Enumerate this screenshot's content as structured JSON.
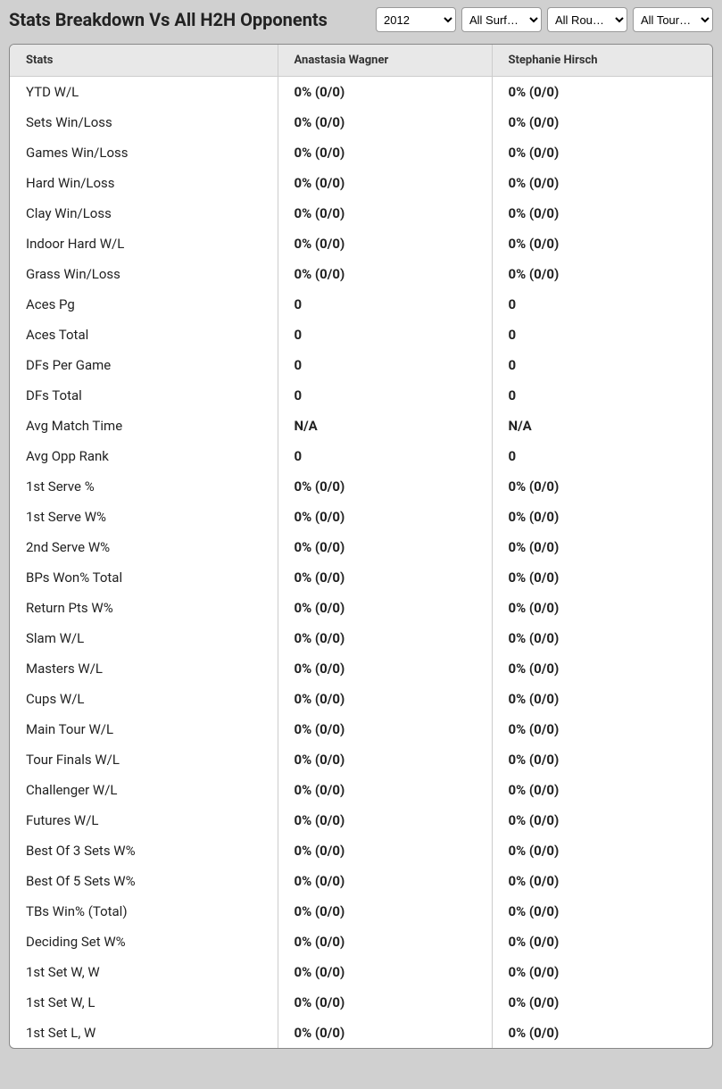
{
  "header": {
    "title": "Stats Breakdown Vs All H2H Opponents",
    "year_selected": "2012",
    "surface_selected": "All Surf…",
    "round_selected": "All Rou…",
    "tour_selected": "All Tour…"
  },
  "table": {
    "columns": [
      "Stats",
      "Anastasia Wagner",
      "Stephanie Hirsch"
    ],
    "rows": [
      {
        "label": "YTD W/L",
        "p1": "0% (0/0)",
        "p2": "0% (0/0)"
      },
      {
        "label": "Sets Win/Loss",
        "p1": "0% (0/0)",
        "p2": "0% (0/0)"
      },
      {
        "label": "Games Win/Loss",
        "p1": "0% (0/0)",
        "p2": "0% (0/0)"
      },
      {
        "label": "Hard Win/Loss",
        "p1": "0% (0/0)",
        "p2": "0% (0/0)"
      },
      {
        "label": "Clay Win/Loss",
        "p1": "0% (0/0)",
        "p2": "0% (0/0)"
      },
      {
        "label": "Indoor Hard W/L",
        "p1": "0% (0/0)",
        "p2": "0% (0/0)"
      },
      {
        "label": "Grass Win/Loss",
        "p1": "0% (0/0)",
        "p2": "0% (0/0)"
      },
      {
        "label": "Aces Pg",
        "p1": "0",
        "p2": "0"
      },
      {
        "label": "Aces Total",
        "p1": "0",
        "p2": "0"
      },
      {
        "label": "DFs Per Game",
        "p1": "0",
        "p2": "0"
      },
      {
        "label": "DFs Total",
        "p1": "0",
        "p2": "0"
      },
      {
        "label": "Avg Match Time",
        "p1": "N/A",
        "p2": "N/A"
      },
      {
        "label": "Avg Opp Rank",
        "p1": "0",
        "p2": "0"
      },
      {
        "label": "1st Serve %",
        "p1": "0% (0/0)",
        "p2": "0% (0/0)"
      },
      {
        "label": "1st Serve W%",
        "p1": "0% (0/0)",
        "p2": "0% (0/0)"
      },
      {
        "label": "2nd Serve W%",
        "p1": "0% (0/0)",
        "p2": "0% (0/0)"
      },
      {
        "label": "BPs Won% Total",
        "p1": "0% (0/0)",
        "p2": "0% (0/0)"
      },
      {
        "label": "Return Pts W%",
        "p1": "0% (0/0)",
        "p2": "0% (0/0)"
      },
      {
        "label": "Slam W/L",
        "p1": "0% (0/0)",
        "p2": "0% (0/0)"
      },
      {
        "label": "Masters W/L",
        "p1": "0% (0/0)",
        "p2": "0% (0/0)"
      },
      {
        "label": "Cups W/L",
        "p1": "0% (0/0)",
        "p2": "0% (0/0)"
      },
      {
        "label": "Main Tour W/L",
        "p1": "0% (0/0)",
        "p2": "0% (0/0)"
      },
      {
        "label": "Tour Finals W/L",
        "p1": "0% (0/0)",
        "p2": "0% (0/0)"
      },
      {
        "label": "Challenger W/L",
        "p1": "0% (0/0)",
        "p2": "0% (0/0)"
      },
      {
        "label": "Futures W/L",
        "p1": "0% (0/0)",
        "p2": "0% (0/0)"
      },
      {
        "label": "Best Of 3 Sets W%",
        "p1": "0% (0/0)",
        "p2": "0% (0/0)"
      },
      {
        "label": "Best Of 5 Sets W%",
        "p1": "0% (0/0)",
        "p2": "0% (0/0)"
      },
      {
        "label": "TBs Win% (Total)",
        "p1": "0% (0/0)",
        "p2": "0% (0/0)"
      },
      {
        "label": "Deciding Set W%",
        "p1": "0% (0/0)",
        "p2": "0% (0/0)"
      },
      {
        "label": "1st Set W, W",
        "p1": "0% (0/0)",
        "p2": "0% (0/0)"
      },
      {
        "label": "1st Set W, L",
        "p1": "0% (0/0)",
        "p2": "0% (0/0)"
      },
      {
        "label": "1st Set L, W",
        "p1": "0% (0/0)",
        "p2": "0% (0/0)"
      }
    ]
  },
  "styling": {
    "page_bg": "#d0d0d0",
    "table_bg": "#ffffff",
    "header_row_bg": "#e8e8e8",
    "border_color": "#cccccc",
    "text_color": "#222222",
    "title_fontsize": 20,
    "header_fontsize": 13,
    "cell_fontsize": 15
  }
}
